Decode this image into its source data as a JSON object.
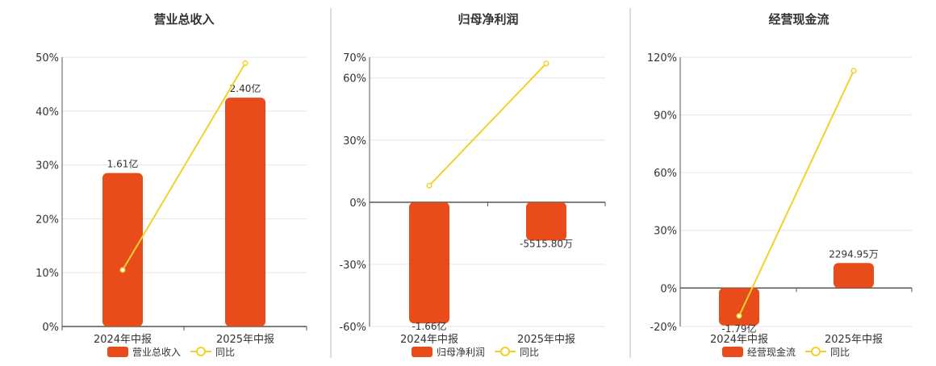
{
  "colors": {
    "bar": "#e84c1a",
    "line": "#f0d22a",
    "grid": "#e6e6e6",
    "axis": "#555555",
    "text": "#333333",
    "divider": "#bbbbbb"
  },
  "chart_data": [
    {
      "type": "bar",
      "title": "营业总收入",
      "categories": [
        "2024年中报",
        "2025年中报"
      ],
      "series": [
        {
          "name": "营业总收入",
          "type": "bar",
          "values": [
            1.61,
            2.4
          ],
          "labels": [
            "1.61亿",
            "2.40亿"
          ]
        },
        {
          "name": "同比",
          "type": "line",
          "values": [
            10.5,
            48.9
          ]
        }
      ],
      "ylim": [
        0,
        50
      ],
      "yticks": [
        "50%",
        "40%",
        "30%",
        "20%",
        "10%",
        "0%"
      ],
      "bar_percent_equivalent": [
        28.5,
        42.5
      ],
      "grid": true,
      "legend_position": "bottom"
    },
    {
      "type": "bar",
      "title": "归母净利润",
      "categories": [
        "2024年中报",
        "2025年中报"
      ],
      "series": [
        {
          "name": "归母净利润",
          "type": "bar",
          "values": [
            -1.66,
            -0.55158
          ],
          "labels": [
            "-1.66亿",
            "-5515.80万"
          ]
        },
        {
          "name": "同比",
          "type": "line",
          "values": [
            8,
            67
          ]
        }
      ],
      "ylim": [
        -60,
        70
      ],
      "yticks": [
        "70%",
        "60%",
        "30%",
        "0%",
        "-30%",
        "-60%"
      ],
      "bar_percent_equivalent": [
        -58.5,
        -18.5
      ],
      "grid": true,
      "legend_position": "bottom"
    },
    {
      "type": "bar",
      "title": "经营现金流",
      "categories": [
        "2024年中报",
        "2025年中报"
      ],
      "series": [
        {
          "name": "经营现金流",
          "type": "bar",
          "values": [
            -1.79,
            0.229495
          ],
          "labels": [
            "-1.79亿",
            "2294.95万"
          ]
        },
        {
          "name": "同比",
          "type": "line",
          "values": [
            -14.5,
            113
          ]
        }
      ],
      "ylim": [
        -20,
        120
      ],
      "yticks": [
        "120%",
        "90%",
        "60%",
        "30%",
        "0%",
        "-20%"
      ],
      "bar_percent_equivalent": [
        -19.5,
        13
      ],
      "grid": true,
      "legend_position": "bottom"
    }
  ]
}
